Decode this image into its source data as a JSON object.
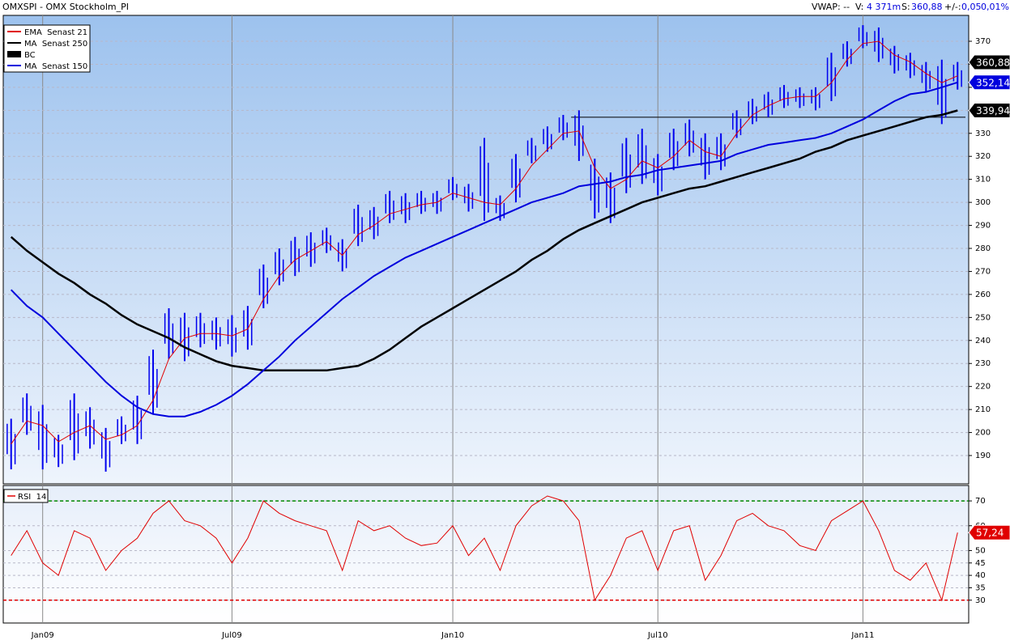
{
  "header": {
    "title": "OMXSPI - OMX Stockholm_PI",
    "vwap": "VWAP: --",
    "v_label": "V:",
    "v_value": "4 371m",
    "s_label": "S:",
    "s_value": "360,88",
    "chg_label": "+/-:",
    "chg_value": "0,05",
    "chg_pct": "0,01%"
  },
  "chart_data": [
    {
      "type": "ohlc-line",
      "categories": [
        null,
        null,
        "Jan09",
        null,
        null,
        null,
        null,
        null,
        null,
        null,
        null,
        null,
        null,
        null,
        "Jul09",
        null,
        null,
        null,
        null,
        null,
        null,
        null,
        null,
        null,
        null,
        null,
        null,
        null,
        "Jan10",
        null,
        null,
        null,
        null,
        null,
        null,
        null,
        null,
        null,
        null,
        null,
        null,
        "Jul10",
        null,
        null,
        null,
        null,
        null,
        null,
        null,
        null,
        null,
        null,
        null,
        null,
        "Jan11",
        null,
        null,
        null,
        null,
        null,
        null
      ],
      "ylim": [
        177.7,
        380.9
      ],
      "yticks": [
        190,
        200,
        210,
        220,
        230,
        240,
        250,
        260,
        270,
        280,
        290,
        300,
        310,
        320,
        330,
        340,
        350,
        360,
        370
      ],
      "grid": true,
      "legend": "top-left",
      "horizontal_line": 337,
      "price": {
        "name": "BC",
        "color": "#0000ee",
        "legend_color": "#000000",
        "high": [
          206,
          217,
          212,
          199,
          217,
          211,
          202,
          207,
          216,
          236,
          254,
          252,
          252,
          250,
          251,
          255,
          273,
          280,
          285,
          287,
          289,
          284,
          299,
          298,
          305,
          304,
          305,
          305,
          311,
          308,
          328,
          303,
          321,
          328,
          333,
          338,
          340,
          319,
          313,
          328,
          332,
          321,
          332,
          336,
          330,
          330,
          340,
          345,
          348,
          351,
          350,
          350,
          365,
          370,
          377,
          376,
          368,
          365,
          361,
          362,
          361
        ],
        "low": [
          184,
          199,
          184,
          185,
          188,
          193,
          183,
          195,
          195,
          208,
          232,
          231,
          237,
          236,
          233,
          236,
          254,
          264,
          268,
          272,
          278,
          270,
          281,
          284,
          291,
          291,
          295,
          295,
          301,
          296,
          292,
          292,
          300,
          317,
          322,
          327,
          318,
          293,
          291,
          304,
          308,
          303,
          314,
          320,
          310,
          314,
          328,
          334,
          337,
          341,
          341,
          340,
          344,
          359,
          367,
          361,
          356,
          354,
          348,
          334,
          349
        ],
        "last": 360.88,
        "last_label": "360,88"
      },
      "series": [
        {
          "name": "EMA  Senast 21",
          "color": "#e00000",
          "width": 1,
          "values": [
            195,
            205,
            203,
            196,
            200,
            203,
            197,
            199,
            203,
            214,
            232,
            241,
            243,
            243,
            242,
            245,
            258,
            268,
            275,
            279,
            283,
            277,
            286,
            290,
            295,
            297,
            299,
            300,
            304,
            302,
            300,
            299,
            306,
            316,
            323,
            330,
            331,
            315,
            306,
            310,
            318,
            315,
            320,
            327,
            322,
            320,
            330,
            338,
            342,
            345,
            346,
            346,
            352,
            362,
            369,
            370,
            364,
            361,
            356,
            352,
            355
          ]
        },
        {
          "name": "MA  Senast 250",
          "color": "#000000",
          "width": 2.5,
          "values": [
            285,
            279,
            274,
            269,
            265,
            260,
            256,
            251,
            247,
            244,
            241,
            237,
            234,
            231,
            229,
            228,
            227,
            227,
            227,
            227,
            227,
            228,
            229,
            232,
            236,
            241,
            246,
            250,
            254,
            258,
            262,
            266,
            270,
            275,
            279,
            284,
            288,
            291,
            294,
            297,
            300,
            302,
            304,
            306,
            307,
            309,
            311,
            313,
            315,
            317,
            319,
            322,
            324,
            327,
            329,
            331,
            333,
            335,
            337,
            338,
            339.94
          ],
          "last_label": "339,94"
        },
        {
          "name": "MA  Senast 150",
          "color": "#0000dd",
          "width": 2,
          "values": [
            262,
            255,
            250,
            243,
            236,
            229,
            222,
            216,
            211,
            208,
            207,
            207,
            209,
            212,
            216,
            221,
            227,
            233,
            240,
            246,
            252,
            258,
            263,
            268,
            272,
            276,
            279,
            282,
            285,
            288,
            291,
            294,
            297,
            300,
            302,
            304,
            307,
            308,
            309,
            311,
            312,
            314,
            315,
            316,
            317,
            318,
            321,
            323,
            325,
            326,
            327,
            328,
            330,
            333,
            336,
            340,
            344,
            347,
            348,
            350,
            352.14
          ],
          "last_label": "352,14"
        }
      ]
    },
    {
      "type": "line",
      "ylim": [
        20.8,
        75.9
      ],
      "yticks": [
        30,
        35,
        40,
        45,
        50,
        60,
        70
      ],
      "grid": true,
      "levels": [
        {
          "value": 70,
          "color": "#008800"
        },
        {
          "value": 30,
          "color": "#e00000"
        }
      ],
      "series": [
        {
          "name": "RSI  14",
          "color": "#e00000",
          "width": 1,
          "values": [
            48,
            58,
            45,
            40,
            58,
            55,
            42,
            50,
            55,
            65,
            70,
            62,
            60,
            55,
            45,
            55,
            70,
            65,
            62,
            60,
            58,
            42,
            62,
            58,
            60,
            55,
            52,
            53,
            60,
            48,
            55,
            42,
            60,
            68,
            72,
            70,
            62,
            30,
            40,
            55,
            58,
            42,
            58,
            60,
            38,
            48,
            62,
            65,
            60,
            58,
            52,
            50,
            62,
            66,
            70,
            58,
            42,
            38,
            45,
            30,
            57.24
          ],
          "last_label": "57,24"
        }
      ]
    }
  ]
}
